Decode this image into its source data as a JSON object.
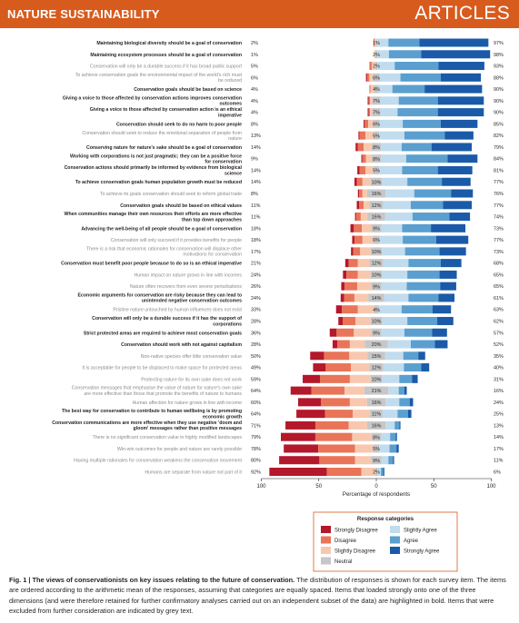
{
  "header": {
    "journal": "NATURE SUSTAINABILITY",
    "section": "ARTICLES"
  },
  "caption": {
    "label": "Fig. 1 |",
    "title": "The views of conservationists on key issues relating to the future of conservation.",
    "body": "The distribution of responses is shown for each survey item. The items are ordered according to the arithmetic mean of the responses, assuming that categories are equally spaced. Items that loaded strongly onto one of the three dimensions (and were therefore retained for further confirmatory analyses carried out on an independent subset of the data) are highlighted in bold. Items that were excluded from further consideration are indicated by grey text."
  },
  "chart_data": {
    "type": "bar",
    "subtype": "diverging-stacked",
    "xlabel": "Percentage of respondents",
    "xticks": [
      "100",
      "50",
      "0",
      "50",
      "100"
    ],
    "xlim": [
      -100,
      100
    ],
    "legend": {
      "title": "Response categories",
      "position": "bottom-right",
      "entries": [
        "Strongly Disagree",
        "Disagree",
        "Slightly Disagree",
        "Neutral",
        "Slightly Agree",
        "Agree",
        "Strongly Agree"
      ]
    },
    "colors": {
      "Strongly Disagree": "#b4182b",
      "Disagree": "#e97458",
      "Slightly Disagree": "#f8c8ae",
      "Neutral": "#c7c7c7",
      "Slightly Agree": "#c1dcee",
      "Agree": "#5a9fcf",
      "Strongly Agree": "#1a5aa8"
    },
    "categories": [
      "Maintaining biological diversity should be a goal of conservation",
      "Maintaining ecosystem processes should be a goal of conservation",
      "Conservation will only be a durable success if it has broad public support",
      "To achieve conservation goals the environmental impact of the world's rich must be reduced",
      "Conservation goals should be based on science",
      "Giving a voice to those affected by conservation actions improves conservation outcomes",
      "Giving a voice to those affected by conservation action is an ethical imperative",
      "Conservation should seek to do no harm to poor people",
      "Conservation should seek to reduce the emotional separation of people from nature",
      "Conserving nature for nature's sake should be a goal of conservation",
      "Working with corporations is not just pragmatic; they can be a positive force for conservation",
      "Conservation actions should primarily be informed by evidence from biological science",
      "To achieve conservation goals human population growth must be reduced",
      "To achieve its goals conservation should seek to reform global trade",
      "Conservation goals should be based on ethical values",
      "When communities manage their own resources their efforts are more effective than top down approaches",
      "Advancing the well-being of all people should be a goal of conservation",
      "Conservation will only succeed if it provides benefits for people",
      "There is a risk that economic rationales for conservation will displace other motivations for conservation",
      "Conservation must benefit poor people because to do so is an ethical imperative",
      "Human impact on nature grows in line with incomes",
      "Nature often recovers from even severe perturbations",
      "Economic arguments for conservation are risky because they can lead to unintended negative conservation outcomes",
      "Pristine nature untouched by human influences does not exist",
      "Conservation will only be a durable success if it has the support of corporations",
      "Strict protected areas are required to achieve most conservation goals",
      "Conservation should work with not against capitalism",
      "Non-native species offer little conservation value",
      "It is acceptable for people to be displaced to make space for protected areas",
      "Protecting nature for its own sake does not work",
      "Conservation messages that emphasise the value of nature for nature's own sake are more effective than those that promote the benefits of nature to humans",
      "Human affection for nature grows in line with income",
      "The best way for conservation to contribute to human wellbeing is by promoting economic growth",
      "Conservation communications are more effective when they use negative 'doom and gloom' messages rather than positive messages",
      "There is no significant conservation value in highly modified landscapes",
      "Win-win outcomes for people and nature are rarely possible",
      "Having multiple rationales for conservation weakens the conservation movement",
      "Humans are separate from nature not part of it"
    ],
    "label_lines": [
      [
        "Maintaining biological diversity should be a goal of conservation"
      ],
      [
        "Maintaining ecosystem processes should be a goal of conservation"
      ],
      [
        "Conservation will only be a durable success if it has broad public support"
      ],
      [
        "To achieve conservation goals the environmental impact of the world's rich must",
        "be reduced"
      ],
      [
        "Conservation goals should be based on science"
      ],
      [
        "Giving a voice to those affected by conservation actions improves conservation",
        "outcomes"
      ],
      [
        "Giving a voice to those affected by conservation action is an ethical",
        "imperative"
      ],
      [
        "Conservation should seek to do no harm to poor people"
      ],
      [
        "Conservation should seek to reduce the emotional separation of people from",
        "nature"
      ],
      [
        "Conserving nature for nature's sake should be a goal of conservation"
      ],
      [
        "Working with corporations is not just pragmatic; they can be a positive force",
        "for conservation"
      ],
      [
        "Conservation actions should primarily be informed by evidence from biological",
        "science"
      ],
      [
        "To achieve conservation goals human population growth must be reduced"
      ],
      [
        "To achieve its goals conservation should seek to reform global trade"
      ],
      [
        "Conservation goals should be based on ethical values"
      ],
      [
        "When communities manage their own resources their efforts are more effective",
        "than top down approaches"
      ],
      [
        "Advancing the well-being of all people should be a goal of conservation"
      ],
      [
        "Conservation will only succeed if it provides benefits for people"
      ],
      [
        "There is a risk that economic rationales for conservation will displace other",
        "motivations for conservation"
      ],
      [
        "Conservation must benefit poor people because to do so is an ethical imperative"
      ],
      [
        "Human impact on nature grows in line with incomes"
      ],
      [
        "Nature often recovers from even severe perturbations"
      ],
      [
        "Economic arguments for conservation are risky because they can lead to",
        "unintended negative conservation outcomes"
      ],
      [
        "Pristine nature untouched by human influences does not exist"
      ],
      [
        "Conservation will only be a durable success if it has the support of",
        "corporations"
      ],
      [
        "Strict protected areas are required to achieve most conservation goals"
      ],
      [
        "Conservation should work with not against capitalism"
      ],
      [
        "Non-native species offer little conservation value"
      ],
      [
        "It is acceptable for people to be displaced to make space for protected areas"
      ],
      [
        "Protecting nature for its own sake does not work"
      ],
      [
        "Conservation messages that emphasise the value of nature for nature's own sake",
        "are more effective than those that promote the benefits of nature to humans"
      ],
      [
        "Human affection for nature grows in line with income"
      ],
      [
        "The best way for conservation to contribute to human wellbeing is by promoting",
        "economic growth"
      ],
      [
        "Conservation communications are more effective when they use negative 'doom and",
        "gloom' messages rather than positive messages"
      ],
      [
        "There is no significant conservation value in highly modified landscapes"
      ],
      [
        "Win-win outcomes for people and nature are rarely possible"
      ],
      [
        "Having multiple rationales for conservation weakens the conservation movement"
      ],
      [
        "Humans are separate from nature not part of it"
      ]
    ],
    "label_style": [
      "bold",
      "bold",
      "grey",
      "grey",
      "bold",
      "bold",
      "bold",
      "bold",
      "grey",
      "bold",
      "bold",
      "bold",
      "bold",
      "grey",
      "bold",
      "bold",
      "bold",
      "grey",
      "grey",
      "bold",
      "grey",
      "grey",
      "bold",
      "grey",
      "bold",
      "bold",
      "bold",
      "grey",
      "grey",
      "grey",
      "grey",
      "grey",
      "bold",
      "bold",
      "grey",
      "grey",
      "grey",
      "grey"
    ],
    "disagree_pct": [
      2,
      1,
      5,
      6,
      4,
      4,
      4,
      8,
      13,
      14,
      9,
      14,
      14,
      8,
      11,
      11,
      18,
      18,
      17,
      21,
      24,
      26,
      24,
      33,
      28,
      36,
      28,
      50,
      49,
      59,
      64,
      60,
      64,
      71,
      79,
      78,
      80,
      92
    ],
    "neutral_pct": [
      1,
      2,
      2,
      6,
      4,
      7,
      7,
      6,
      5,
      8,
      8,
      5,
      10,
      16,
      12,
      15,
      9,
      6,
      10,
      12,
      10,
      9,
      14,
      4,
      10,
      9,
      20,
      15,
      12,
      10,
      21,
      16,
      11,
      16,
      8,
      5,
      9,
      2
    ],
    "agree_pct": [
      97,
      98,
      93,
      88,
      90,
      90,
      90,
      85,
      82,
      79,
      84,
      81,
      77,
      76,
      77,
      74,
      73,
      77,
      73,
      68,
      65,
      65,
      61,
      63,
      62,
      57,
      52,
      35,
      40,
      31,
      16,
      24,
      25,
      13,
      14,
      17,
      11,
      6
    ],
    "series": [
      {
        "name": "Strongly Disagree",
        "values": [
          0,
          0,
          0,
          1,
          0,
          1,
          1,
          1,
          1,
          2,
          1,
          2,
          2,
          1,
          2,
          1,
          3,
          2,
          2,
          3,
          3,
          3,
          3,
          5,
          4,
          6,
          4,
          12,
          11,
          15,
          18,
          20,
          25,
          26,
          30,
          30,
          35,
          50
        ]
      },
      {
        "name": "Disagree",
        "values": [
          1,
          0,
          2,
          2,
          1,
          1,
          1,
          3,
          5,
          5,
          3,
          5,
          5,
          3,
          4,
          4,
          7,
          7,
          6,
          8,
          10,
          11,
          9,
          14,
          11,
          15,
          11,
          22,
          22,
          26,
          29,
          25,
          24,
          29,
          32,
          32,
          31,
          30
        ]
      },
      {
        "name": "Slightly Disagree",
        "values": [
          1,
          1,
          3,
          3,
          3,
          2,
          2,
          4,
          7,
          7,
          5,
          7,
          7,
          4,
          5,
          6,
          8,
          9,
          9,
          10,
          11,
          12,
          12,
          14,
          13,
          15,
          13,
          16,
          16,
          18,
          17,
          15,
          15,
          16,
          17,
          16,
          14,
          12
        ]
      },
      {
        "name": "Neutral",
        "values": [
          1,
          2,
          2,
          6,
          4,
          7,
          7,
          6,
          5,
          8,
          8,
          5,
          10,
          16,
          12,
          15,
          9,
          6,
          10,
          12,
          10,
          9,
          14,
          4,
          10,
          9,
          20,
          15,
          12,
          10,
          21,
          16,
          11,
          16,
          8,
          5,
          9,
          2
        ]
      },
      {
        "name": "Slightly Agree",
        "values": [
          10,
          10,
          15,
          18,
          12,
          16,
          15,
          20,
          22,
          18,
          22,
          20,
          22,
          25,
          24,
          24,
          18,
          20,
          20,
          22,
          22,
          22,
          21,
          20,
          22,
          20,
          20,
          16,
          18,
          15,
          9,
          12,
          13,
          8,
          8,
          9,
          6,
          3
        ]
      },
      {
        "name": "Agree",
        "values": [
          27,
          28,
          38,
          35,
          28,
          34,
          35,
          33,
          35,
          26,
          36,
          31,
          30,
          32,
          28,
          32,
          25,
          29,
          30,
          28,
          28,
          29,
          26,
          27,
          26,
          24,
          21,
          13,
          15,
          11,
          5,
          9,
          9,
          4,
          5,
          6,
          4,
          2
        ]
      },
      {
        "name": "Strongly Agree",
        "values": [
          60,
          60,
          40,
          35,
          50,
          40,
          40,
          32,
          25,
          35,
          26,
          30,
          25,
          19,
          25,
          18,
          30,
          28,
          23,
          18,
          15,
          14,
          14,
          16,
          14,
          13,
          11,
          6,
          7,
          5,
          2,
          3,
          3,
          1,
          1,
          2,
          1,
          1
        ]
      }
    ]
  }
}
